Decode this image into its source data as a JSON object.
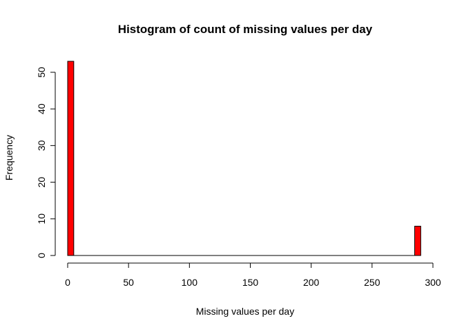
{
  "chart_data": {
    "type": "bar",
    "title": "Histogram of count of missing values per day",
    "xlabel": "Missing values per day",
    "ylabel": "Frequency",
    "xlim": [
      0,
      300
    ],
    "ylim": [
      0,
      53
    ],
    "x_ticks": [
      0,
      50,
      100,
      150,
      200,
      250,
      300
    ],
    "y_ticks": [
      0,
      10,
      20,
      30,
      40,
      50
    ],
    "x_tick_labels": [
      "0",
      "50",
      "100",
      "150",
      "200",
      "250",
      "300"
    ],
    "y_tick_labels": [
      "0",
      "10",
      "20",
      "30",
      "40",
      "50"
    ],
    "bins": [
      {
        "x_start": 0,
        "x_end": 5,
        "count": 53
      },
      {
        "x_start": 285,
        "x_end": 290,
        "count": 8
      }
    ],
    "bar_color": "#ff0000",
    "border_color": "#000000",
    "grid": false,
    "legend": "none"
  }
}
